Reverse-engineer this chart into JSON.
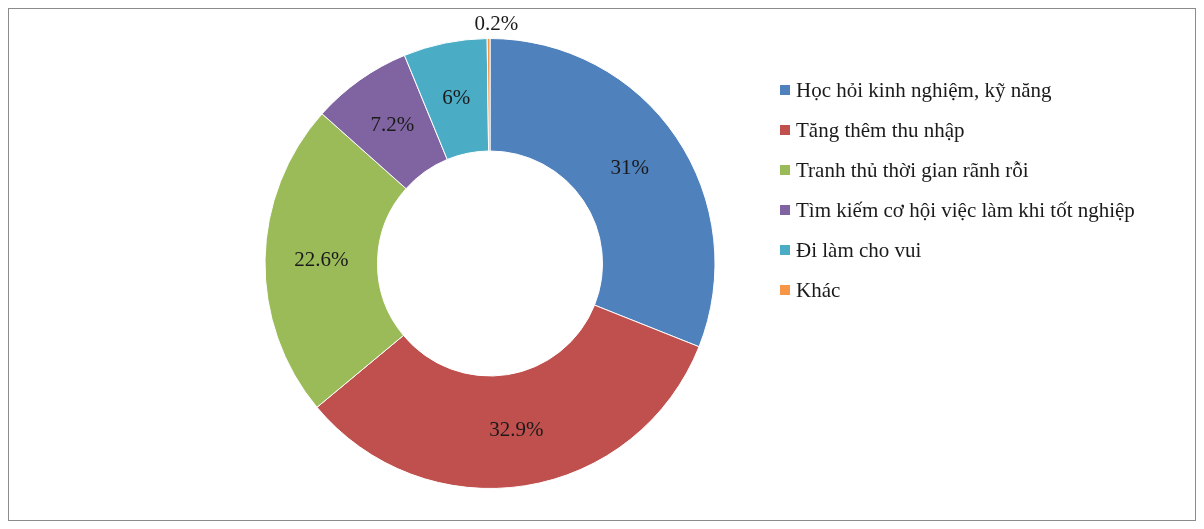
{
  "chart_data": {
    "type": "donut",
    "categories": [
      "Học hỏi kinh nghiệm, kỹ năng",
      "Tăng thêm thu nhập",
      "Tranh thủ thời gian rãnh rỗi",
      "Tìm kiếm cơ hội việc làm khi tốt nghiệp",
      "Đi làm cho vui",
      "Khác"
    ],
    "values": [
      31,
      32.9,
      22.6,
      7.2,
      6,
      0.2
    ],
    "colors": [
      "#4f81bd",
      "#c0504d",
      "#9bbb59",
      "#8064a2",
      "#4bacc6",
      "#f79646"
    ],
    "value_labels": [
      "31%",
      "32.9%",
      "22.6%",
      "7.2%",
      "6%",
      "0.2%"
    ],
    "legend": "right"
  }
}
